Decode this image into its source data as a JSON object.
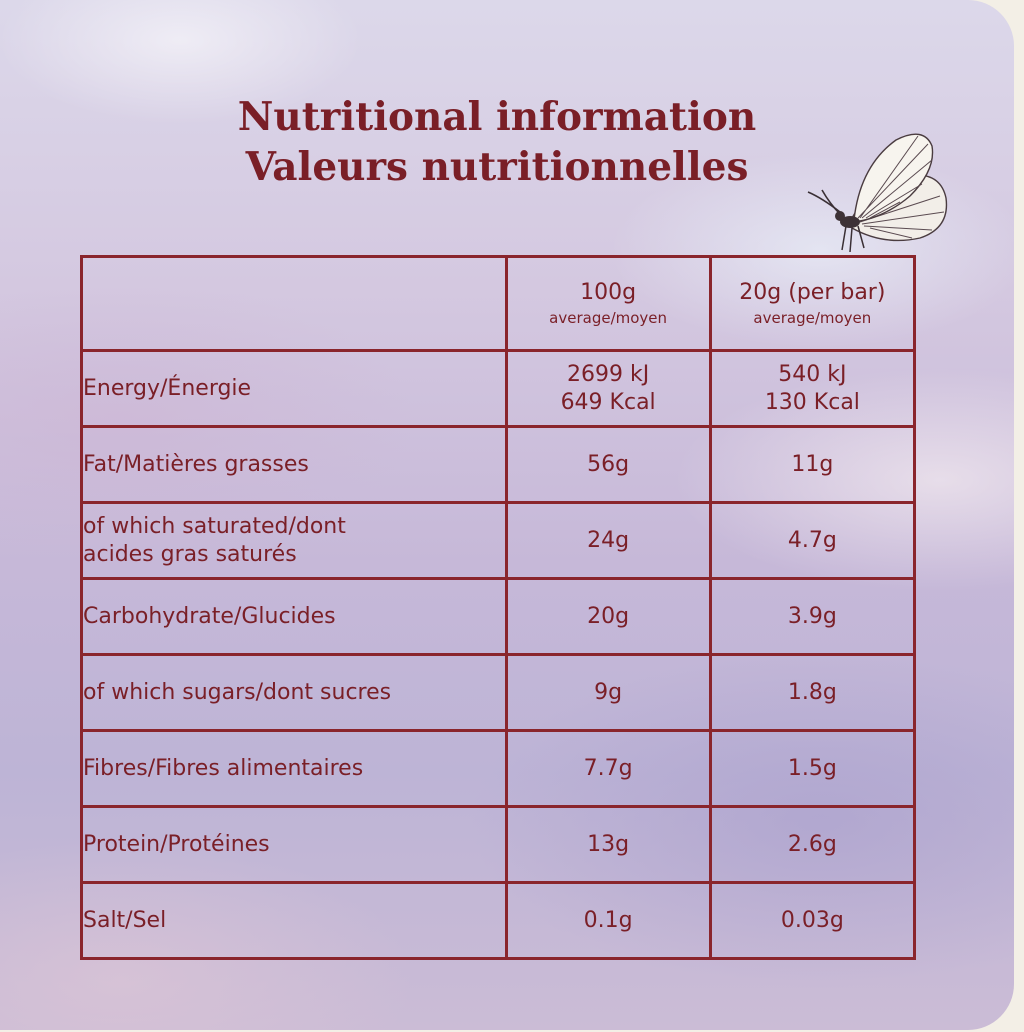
{
  "title_en": "Nutritional information",
  "title_fr": "Valeurs nutritionnelles",
  "decoration": {
    "icon": "butterfly-icon"
  },
  "colors": {
    "accent": "#7a1f27",
    "border": "#8a252c"
  },
  "table": {
    "headers": [
      {
        "main": "",
        "sub": ""
      },
      {
        "main": "100g",
        "sub": "average/moyen"
      },
      {
        "main": "20g (per bar)",
        "sub": "average/moyen"
      }
    ],
    "rows": [
      {
        "label": [
          "Energy/Énergie"
        ],
        "per100": [
          "2699 kJ",
          "649 Kcal"
        ],
        "perBar": [
          "540 kJ",
          "130 Kcal"
        ]
      },
      {
        "label": [
          "Fat/Matières grasses"
        ],
        "per100": [
          "56g"
        ],
        "perBar": [
          "11g"
        ]
      },
      {
        "label": [
          "of which saturated/dont",
          "acides gras saturés"
        ],
        "per100": [
          "24g"
        ],
        "perBar": [
          "4.7g"
        ]
      },
      {
        "label": [
          "Carbohydrate/Glucides"
        ],
        "per100": [
          "20g"
        ],
        "perBar": [
          "3.9g"
        ]
      },
      {
        "label": [
          "of which sugars/dont sucres"
        ],
        "per100": [
          "9g"
        ],
        "perBar": [
          "1.8g"
        ]
      },
      {
        "label": [
          "Fibres/Fibres alimentaires"
        ],
        "per100": [
          "7.7g"
        ],
        "perBar": [
          "1.5g"
        ]
      },
      {
        "label": [
          "Protein/Protéines"
        ],
        "per100": [
          "13g"
        ],
        "perBar": [
          "2.6g"
        ]
      },
      {
        "label": [
          "Salt/Sel"
        ],
        "per100": [
          "0.1g"
        ],
        "perBar": [
          "0.03g"
        ]
      }
    ]
  }
}
